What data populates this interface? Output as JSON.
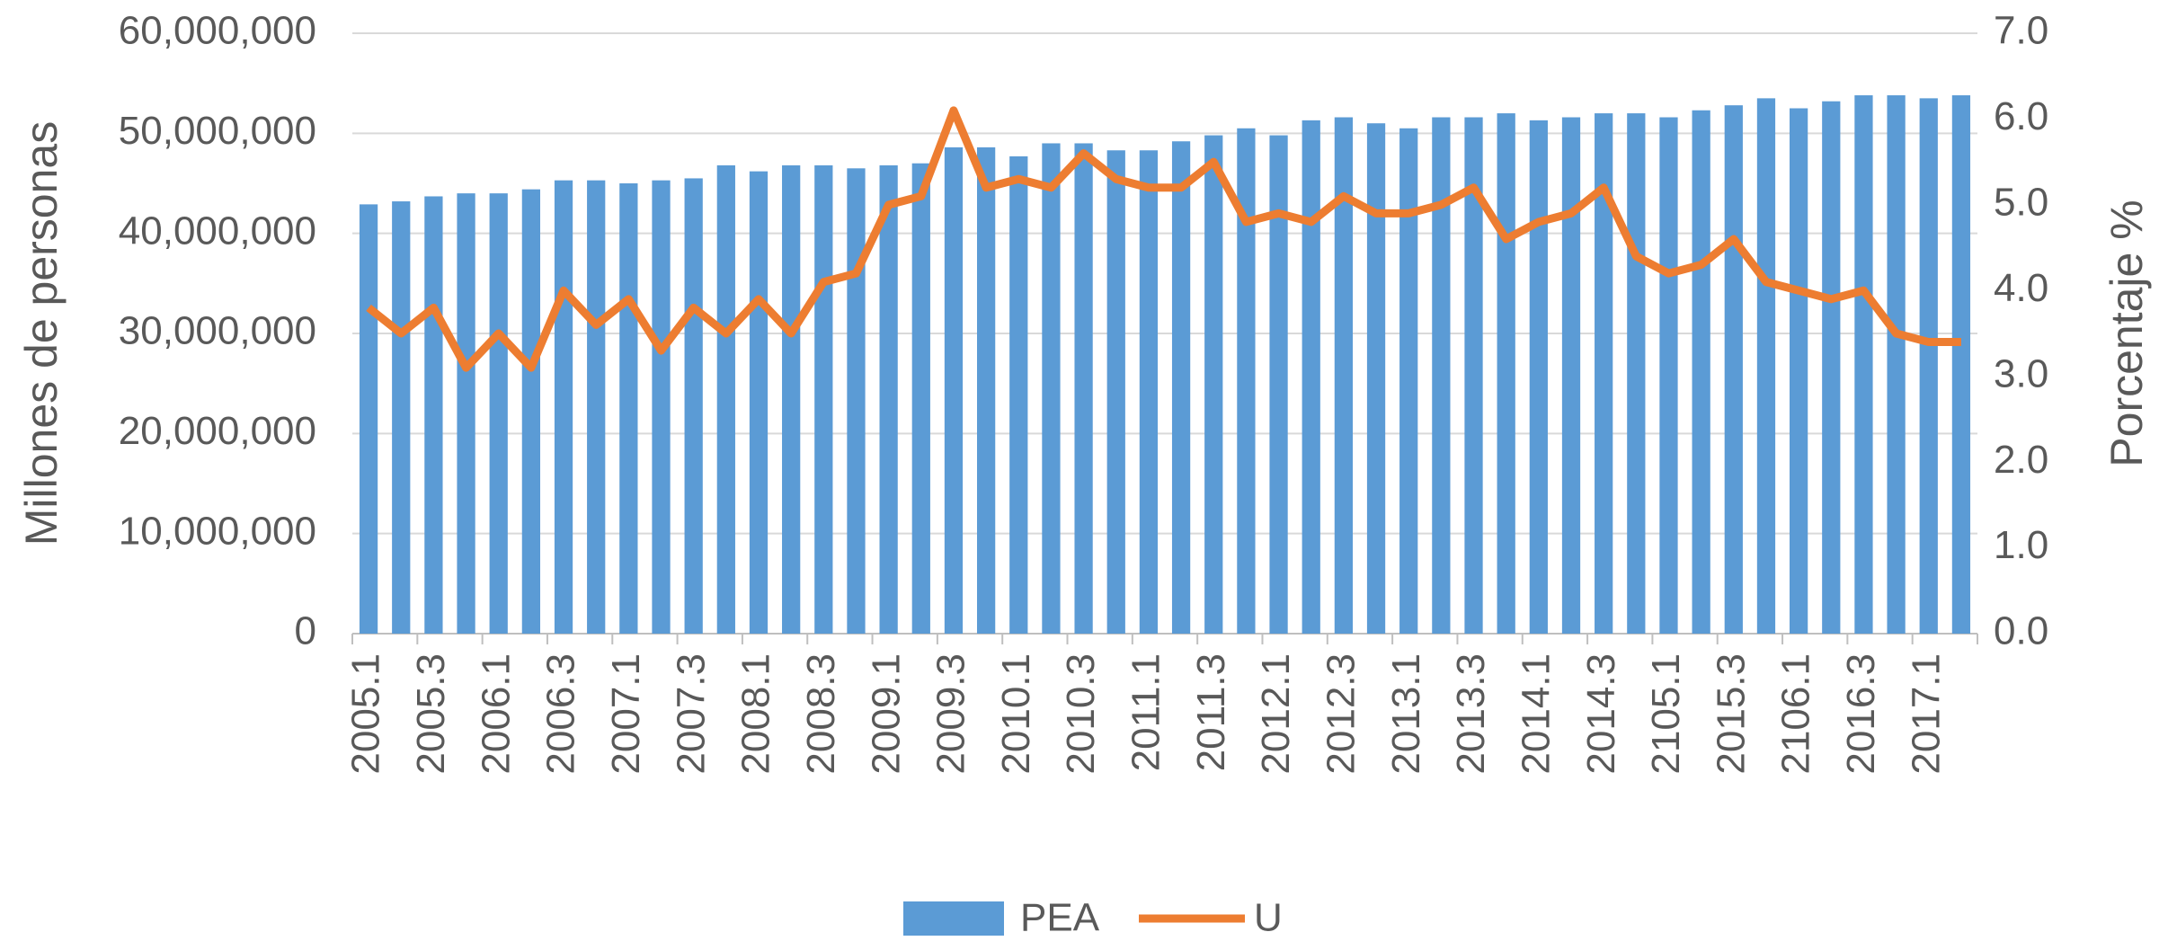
{
  "chart_data": {
    "type": "bar",
    "categories": [
      "2005.1",
      null,
      "2005.3",
      null,
      "2006.1",
      null,
      "2006.3",
      null,
      "2007.1",
      null,
      "2007.3",
      null,
      "2008.1",
      null,
      "2008.3",
      null,
      "2009.1",
      null,
      "2009.3",
      null,
      "2010.1",
      null,
      "2010.3",
      null,
      "2011.1",
      null,
      "2011.3",
      null,
      "2012.1",
      null,
      "2012.3",
      null,
      "2013.1",
      null,
      "2013.3",
      null,
      "2014.1",
      null,
      "2014.3",
      null,
      "2105.1",
      null,
      "2015.3",
      null,
      "2106.1",
      null,
      "2016.3",
      null,
      "2017.1",
      null
    ],
    "series": [
      {
        "name": "PEA",
        "type": "bar",
        "color": "#5b9bd5",
        "values": [
          42900000,
          43200000,
          43700000,
          44000000,
          44000000,
          44400000,
          45300000,
          45300000,
          45000000,
          45300000,
          45500000,
          46800000,
          46200000,
          46800000,
          46800000,
          46500000,
          46800000,
          47000000,
          48600000,
          48600000,
          47700000,
          49000000,
          49000000,
          48300000,
          48300000,
          49200000,
          49800000,
          50500000,
          49800000,
          51300000,
          51600000,
          51000000,
          50500000,
          51600000,
          51600000,
          52000000,
          51300000,
          51600000,
          52000000,
          52000000,
          51600000,
          52300000,
          52800000,
          53500000,
          52500000,
          53200000,
          53800000,
          53800000,
          53500000,
          53800000
        ]
      },
      {
        "name": "U",
        "type": "line",
        "axis": "y2",
        "color": "#ed7d31",
        "values": [
          3.8,
          3.5,
          3.8,
          3.1,
          3.5,
          3.1,
          4.0,
          3.6,
          3.9,
          3.3,
          3.8,
          3.5,
          3.9,
          3.5,
          4.1,
          4.2,
          5.0,
          5.1,
          6.1,
          5.2,
          5.3,
          5.2,
          5.6,
          5.3,
          5.2,
          5.2,
          5.5,
          4.8,
          4.9,
          4.8,
          5.1,
          4.9,
          4.9,
          5.0,
          5.2,
          4.6,
          4.8,
          4.9,
          5.2,
          4.4,
          4.2,
          4.3,
          4.6,
          4.1,
          4.0,
          3.9,
          4.0,
          3.5,
          3.4,
          3.4
        ]
      }
    ],
    "ylabel": "Millones de personas",
    "y2label": "Porcentaje %",
    "ylim": [
      0,
      60000000
    ],
    "yticks": [
      0,
      {
        "value": 10000000,
        "label": "10,000,000"
      },
      {
        "value": 20000000,
        "label": "20,000,000"
      },
      {
        "value": 30000000,
        "label": "30,000,000"
      },
      {
        "value": 40000000,
        "label": "40,000,000"
      },
      {
        "value": 50000000,
        "label": "50,000,000"
      },
      {
        "value": 60000000,
        "label": "60,000,000"
      }
    ],
    "y2lim": [
      0,
      7
    ],
    "y2ticks": [
      {
        "value": 0,
        "label": "0.0"
      },
      {
        "value": 1,
        "label": "1.0"
      },
      {
        "value": 2,
        "label": "2.0"
      },
      {
        "value": 3,
        "label": "3.0"
      },
      {
        "value": 4,
        "label": "4.0"
      },
      {
        "value": 5,
        "label": "5.0"
      },
      {
        "value": 6,
        "label": "6.0"
      },
      {
        "value": 7,
        "label": "7.0"
      }
    ],
    "grid": true,
    "legend": "bottom"
  }
}
